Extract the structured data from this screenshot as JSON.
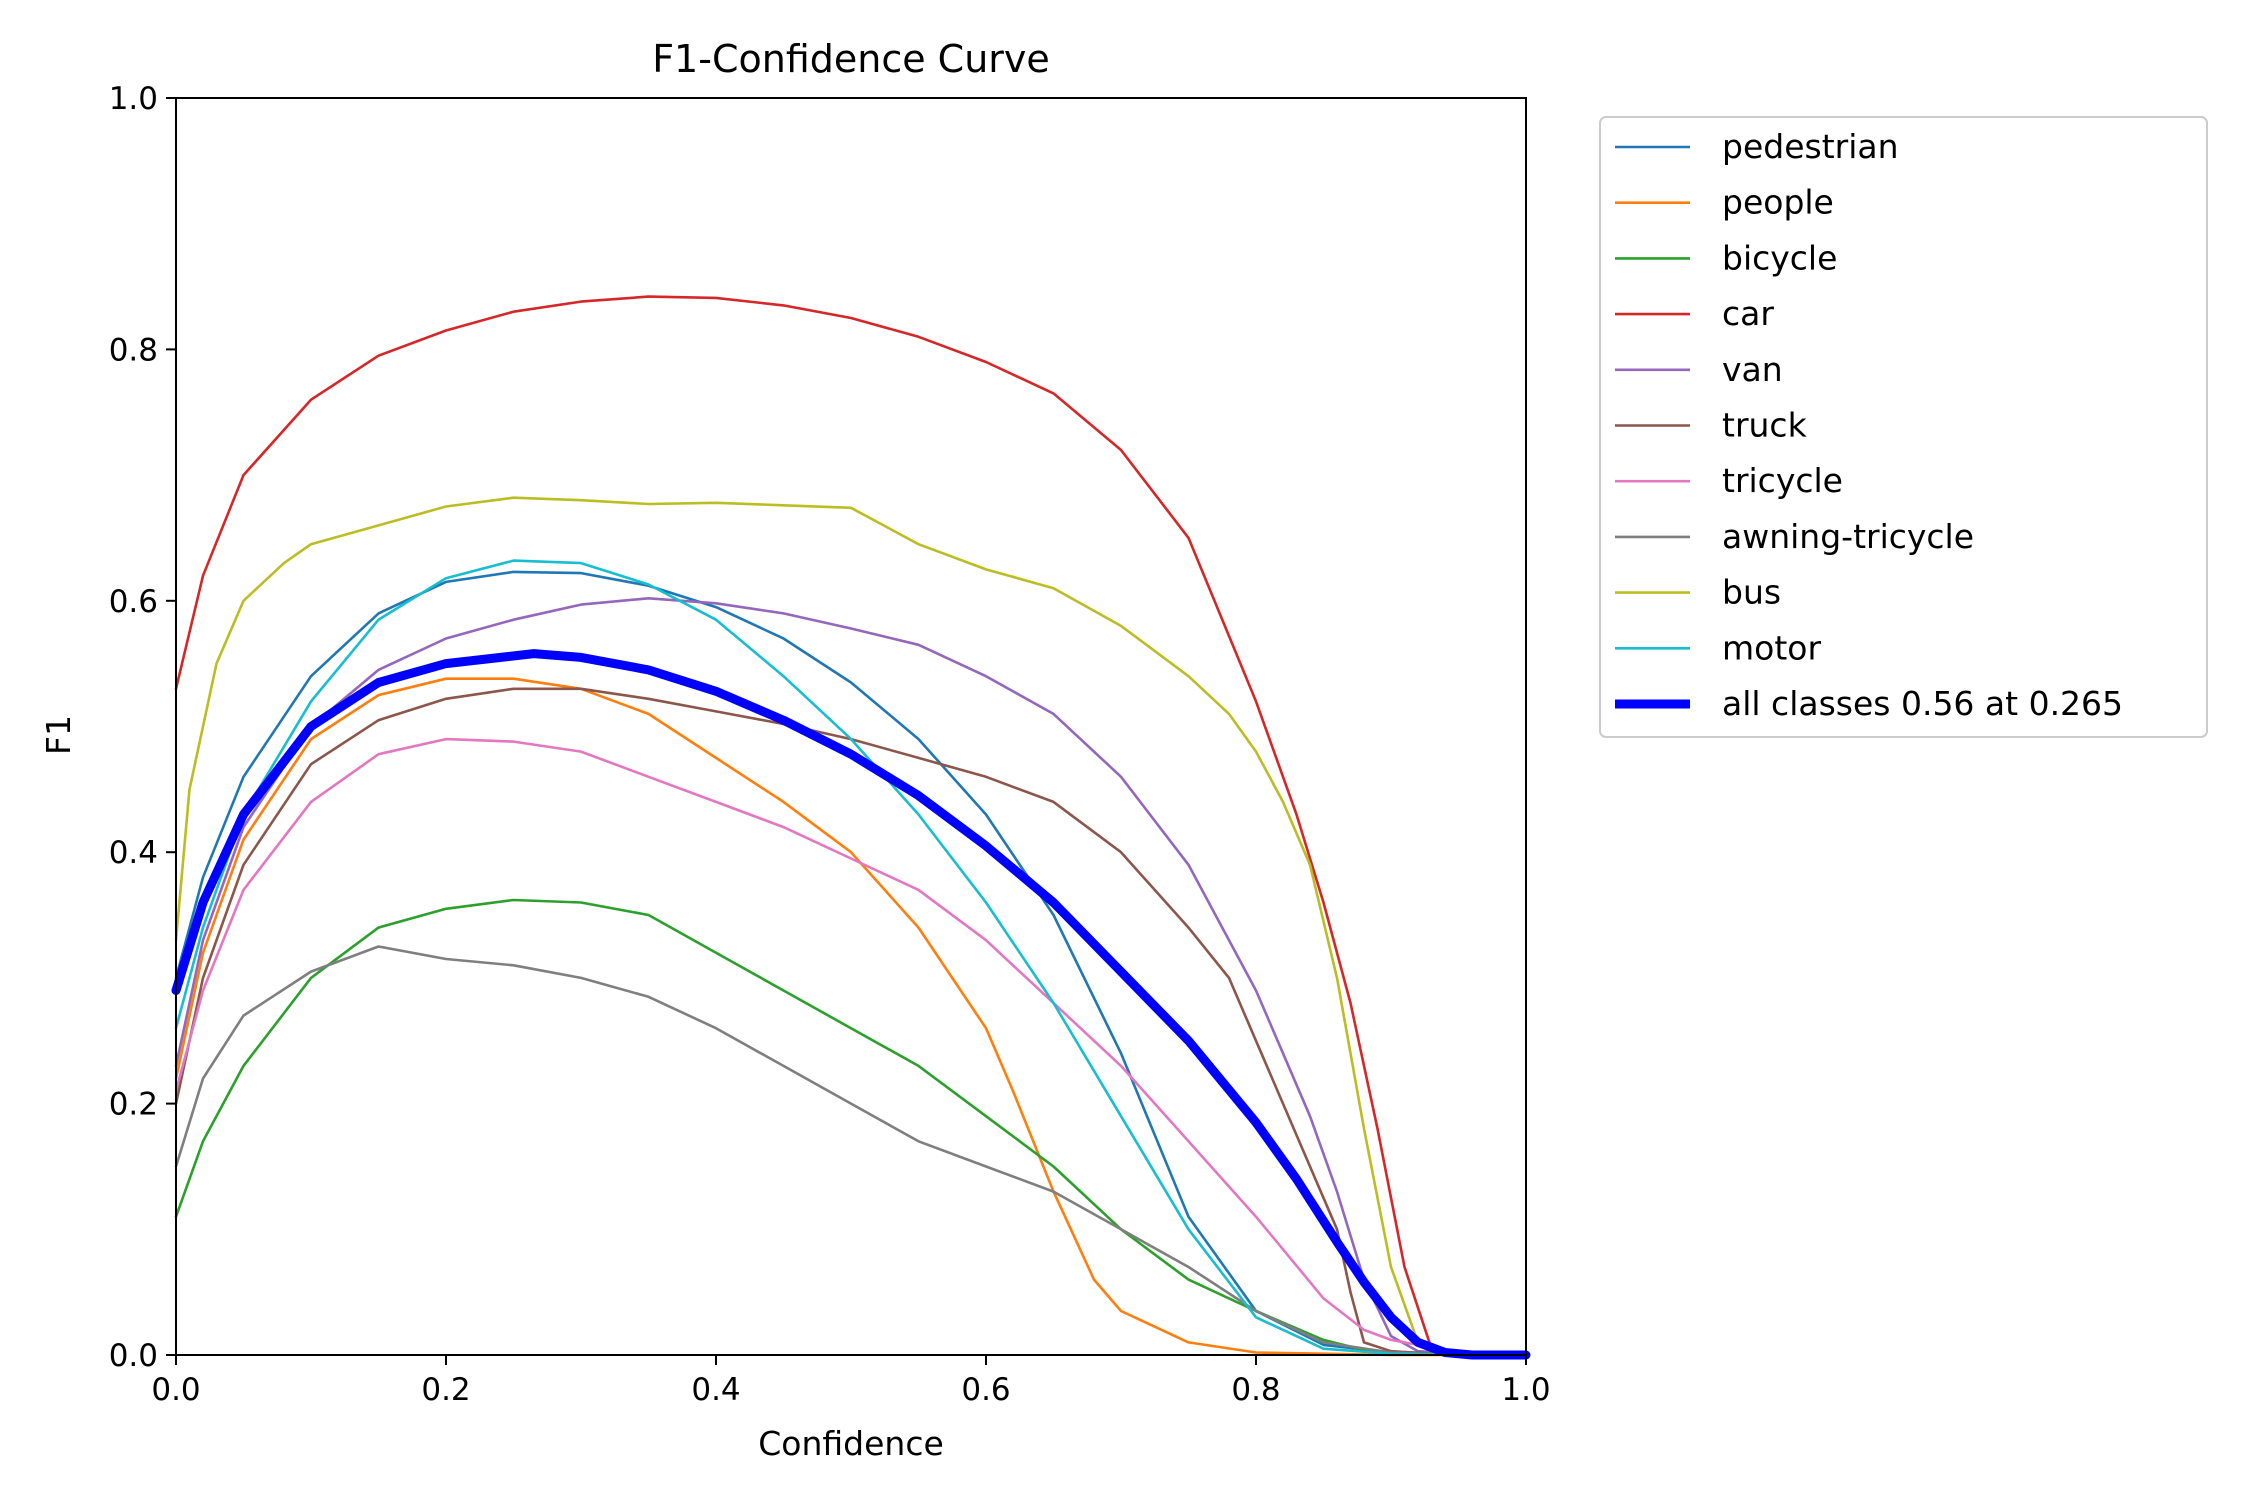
{
  "chart_data": {
    "type": "line",
    "title": "F1-Confidence Curve",
    "xlabel": "Confidence",
    "ylabel": "F1",
    "xlim": [
      0.0,
      1.0
    ],
    "ylim": [
      0.0,
      1.0
    ],
    "x_ticks": [
      "0.0",
      "0.2",
      "0.4",
      "0.6",
      "0.8",
      "1.0"
    ],
    "y_ticks": [
      "0.0",
      "0.2",
      "0.4",
      "0.6",
      "0.8",
      "1.0"
    ],
    "grid": false,
    "legend_position": "outside-right",
    "series": [
      {
        "name": "pedestrian",
        "color": "#1f77b4",
        "x": [
          0,
          0.02,
          0.05,
          0.1,
          0.15,
          0.2,
          0.25,
          0.3,
          0.35,
          0.4,
          0.45,
          0.5,
          0.55,
          0.6,
          0.65,
          0.7,
          0.75,
          0.8,
          0.85,
          0.9,
          0.93,
          0.95,
          1.0
        ],
        "y": [
          0.3,
          0.38,
          0.46,
          0.54,
          0.59,
          0.615,
          0.623,
          0.622,
          0.612,
          0.595,
          0.57,
          0.535,
          0.49,
          0.43,
          0.35,
          0.24,
          0.11,
          0.035,
          0.008,
          0.002,
          0.001,
          0.0,
          0.0
        ]
      },
      {
        "name": "people",
        "color": "#ff7f0e",
        "x": [
          0,
          0.02,
          0.05,
          0.1,
          0.15,
          0.2,
          0.25,
          0.3,
          0.35,
          0.4,
          0.45,
          0.5,
          0.55,
          0.6,
          0.62,
          0.65,
          0.68,
          0.7,
          0.75,
          0.8,
          0.85,
          0.9,
          1.0
        ],
        "y": [
          0.22,
          0.32,
          0.41,
          0.49,
          0.525,
          0.538,
          0.538,
          0.53,
          0.51,
          0.475,
          0.44,
          0.4,
          0.34,
          0.26,
          0.21,
          0.13,
          0.06,
          0.035,
          0.01,
          0.002,
          0.001,
          0.0,
          0.0
        ]
      },
      {
        "name": "bicycle",
        "color": "#2ca02c",
        "x": [
          0,
          0.02,
          0.05,
          0.1,
          0.15,
          0.2,
          0.25,
          0.3,
          0.35,
          0.4,
          0.45,
          0.5,
          0.55,
          0.6,
          0.65,
          0.7,
          0.75,
          0.8,
          0.85,
          0.88,
          0.9,
          0.95,
          1.0
        ],
        "y": [
          0.11,
          0.17,
          0.23,
          0.3,
          0.34,
          0.355,
          0.362,
          0.36,
          0.35,
          0.32,
          0.29,
          0.26,
          0.23,
          0.19,
          0.15,
          0.1,
          0.06,
          0.035,
          0.012,
          0.004,
          0.002,
          0.0,
          0.0
        ]
      },
      {
        "name": "car",
        "color": "#d62728",
        "x": [
          0,
          0.02,
          0.05,
          0.1,
          0.15,
          0.2,
          0.25,
          0.3,
          0.35,
          0.4,
          0.45,
          0.5,
          0.55,
          0.6,
          0.65,
          0.7,
          0.75,
          0.8,
          0.83,
          0.85,
          0.87,
          0.89,
          0.91,
          0.93,
          0.95,
          1.0
        ],
        "y": [
          0.53,
          0.62,
          0.7,
          0.76,
          0.795,
          0.815,
          0.83,
          0.838,
          0.842,
          0.841,
          0.835,
          0.825,
          0.81,
          0.79,
          0.765,
          0.72,
          0.65,
          0.52,
          0.43,
          0.36,
          0.28,
          0.18,
          0.07,
          0.005,
          0.001,
          0.0
        ]
      },
      {
        "name": "van",
        "color": "#9467bd",
        "x": [
          0,
          0.02,
          0.05,
          0.1,
          0.15,
          0.2,
          0.25,
          0.3,
          0.35,
          0.4,
          0.45,
          0.5,
          0.55,
          0.6,
          0.65,
          0.7,
          0.75,
          0.8,
          0.82,
          0.84,
          0.86,
          0.88,
          0.9,
          0.92,
          0.95,
          1.0
        ],
        "y": [
          0.23,
          0.33,
          0.42,
          0.5,
          0.545,
          0.57,
          0.585,
          0.597,
          0.602,
          0.598,
          0.59,
          0.578,
          0.565,
          0.54,
          0.51,
          0.46,
          0.39,
          0.29,
          0.24,
          0.19,
          0.13,
          0.06,
          0.015,
          0.003,
          0.001,
          0.0
        ]
      },
      {
        "name": "truck",
        "color": "#8c564b",
        "x": [
          0,
          0.02,
          0.05,
          0.1,
          0.15,
          0.2,
          0.25,
          0.3,
          0.35,
          0.4,
          0.45,
          0.5,
          0.55,
          0.6,
          0.65,
          0.7,
          0.75,
          0.78,
          0.8,
          0.82,
          0.84,
          0.86,
          0.87,
          0.88,
          0.9,
          0.95,
          1.0
        ],
        "y": [
          0.2,
          0.3,
          0.39,
          0.47,
          0.505,
          0.522,
          0.53,
          0.53,
          0.522,
          0.512,
          0.502,
          0.49,
          0.475,
          0.46,
          0.44,
          0.4,
          0.34,
          0.3,
          0.25,
          0.2,
          0.15,
          0.1,
          0.05,
          0.01,
          0.003,
          0.0,
          0.0
        ]
      },
      {
        "name": "tricycle",
        "color": "#e377c2",
        "x": [
          0,
          0.02,
          0.05,
          0.1,
          0.15,
          0.2,
          0.25,
          0.3,
          0.35,
          0.4,
          0.45,
          0.5,
          0.55,
          0.6,
          0.65,
          0.7,
          0.75,
          0.8,
          0.85,
          0.88,
          0.9,
          0.92,
          0.95,
          1.0
        ],
        "y": [
          0.21,
          0.29,
          0.37,
          0.44,
          0.478,
          0.49,
          0.488,
          0.48,
          0.46,
          0.44,
          0.42,
          0.395,
          0.37,
          0.33,
          0.28,
          0.23,
          0.17,
          0.11,
          0.045,
          0.02,
          0.012,
          0.008,
          0.002,
          0.0
        ]
      },
      {
        "name": "awning-tricycle",
        "color": "#7f7f7f",
        "x": [
          0,
          0.02,
          0.05,
          0.1,
          0.15,
          0.2,
          0.25,
          0.3,
          0.35,
          0.4,
          0.45,
          0.5,
          0.55,
          0.6,
          0.65,
          0.7,
          0.75,
          0.8,
          0.85,
          0.9,
          0.95,
          1.0
        ],
        "y": [
          0.15,
          0.22,
          0.27,
          0.305,
          0.325,
          0.315,
          0.31,
          0.3,
          0.285,
          0.26,
          0.23,
          0.2,
          0.17,
          0.15,
          0.13,
          0.1,
          0.07,
          0.035,
          0.01,
          0.002,
          0.0,
          0.0
        ]
      },
      {
        "name": "bus",
        "color": "#bcbd22",
        "x": [
          0,
          0.01,
          0.03,
          0.05,
          0.08,
          0.1,
          0.15,
          0.2,
          0.25,
          0.3,
          0.35,
          0.4,
          0.45,
          0.5,
          0.55,
          0.6,
          0.65,
          0.7,
          0.75,
          0.78,
          0.8,
          0.82,
          0.84,
          0.86,
          0.88,
          0.9,
          0.92,
          0.94,
          1.0
        ],
        "y": [
          0.33,
          0.45,
          0.55,
          0.6,
          0.63,
          0.645,
          0.66,
          0.675,
          0.682,
          0.68,
          0.677,
          0.678,
          0.676,
          0.674,
          0.645,
          0.625,
          0.61,
          0.58,
          0.54,
          0.51,
          0.48,
          0.44,
          0.39,
          0.3,
          0.18,
          0.07,
          0.01,
          0.001,
          0.0
        ]
      },
      {
        "name": "motor",
        "color": "#17becf",
        "x": [
          0,
          0.02,
          0.05,
          0.1,
          0.15,
          0.2,
          0.25,
          0.3,
          0.35,
          0.4,
          0.45,
          0.5,
          0.55,
          0.6,
          0.65,
          0.7,
          0.75,
          0.8,
          0.85,
          0.9,
          0.95,
          1.0
        ],
        "y": [
          0.26,
          0.34,
          0.43,
          0.52,
          0.585,
          0.618,
          0.632,
          0.63,
          0.613,
          0.585,
          0.54,
          0.49,
          0.43,
          0.36,
          0.28,
          0.19,
          0.1,
          0.03,
          0.005,
          0.001,
          0.0,
          0.0
        ]
      },
      {
        "name": "all classes 0.56 at 0.265",
        "color": "#0000ff",
        "bold": true,
        "x": [
          0,
          0.02,
          0.05,
          0.1,
          0.15,
          0.2,
          0.265,
          0.3,
          0.35,
          0.4,
          0.45,
          0.5,
          0.55,
          0.6,
          0.65,
          0.7,
          0.75,
          0.8,
          0.83,
          0.86,
          0.88,
          0.9,
          0.92,
          0.94,
          0.96,
          1.0
        ],
        "y": [
          0.29,
          0.36,
          0.43,
          0.5,
          0.535,
          0.55,
          0.558,
          0.555,
          0.545,
          0.528,
          0.505,
          0.478,
          0.445,
          0.405,
          0.36,
          0.305,
          0.25,
          0.185,
          0.14,
          0.09,
          0.058,
          0.03,
          0.01,
          0.002,
          0.0,
          0.0
        ]
      }
    ]
  }
}
